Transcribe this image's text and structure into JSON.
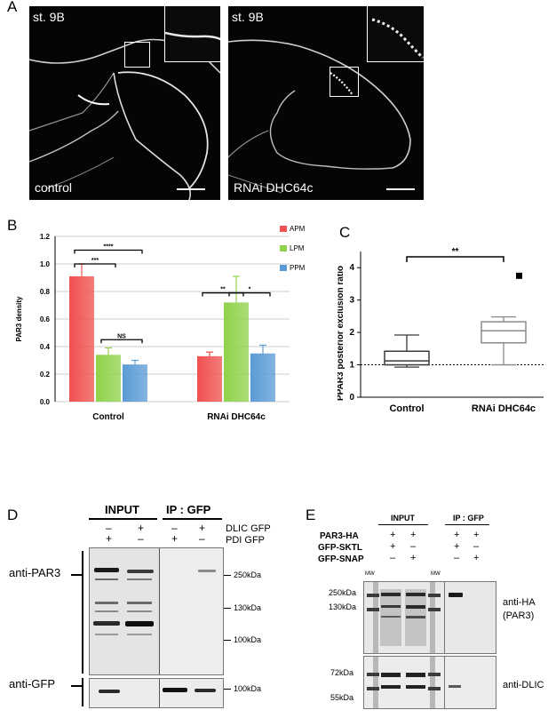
{
  "panel_a": {
    "letter": "A",
    "left_image": {
      "stage": "st. 9B",
      "condition": "control"
    },
    "right_image": {
      "stage": "st. 9B",
      "condition": "RNAi DHC64c"
    }
  },
  "panel_b": {
    "letter": "B"
  },
  "panel_c": {
    "letter": "C"
  },
  "panel_d": {
    "letter": "D",
    "input_header": "INPUT",
    "ip_header": "IP : GFP",
    "row1_label": "DLIC GFP",
    "row2_label": "PDI GFP",
    "row1_signs": [
      "–",
      "+",
      "–",
      "+"
    ],
    "row2_signs": [
      "+",
      "–",
      "+",
      "–"
    ],
    "blot1_label": "anti-PAR3",
    "blot2_label": "anti-GFP",
    "mw_250": "250kDa",
    "mw_130": "130kDa",
    "mw_100a": "100kDa",
    "mw_100b": "100kDa"
  },
  "panel_e": {
    "letter": "E",
    "input_header": "INPUT",
    "ip_header": "IP : GFP",
    "rows": [
      {
        "label": "PAR3-HA",
        "signs": [
          "+",
          "+",
          "+",
          "+"
        ]
      },
      {
        "label": "GFP-SKTL",
        "signs": [
          "+",
          "–",
          "+",
          "–"
        ]
      },
      {
        "label": "GFP-SNAP",
        "signs": [
          "–",
          "+",
          "–",
          "+"
        ]
      }
    ],
    "mw_lane": "MW",
    "top_mw": [
      "250kDa",
      "130kDa"
    ],
    "bottom_mw": [
      "72kDa",
      "55kDa"
    ],
    "top_label_1": "anti-HA",
    "top_label_2": "(PAR3)",
    "bottom_label": "anti-DLIC"
  },
  "chart_data": [
    {
      "type": "bar",
      "ylabel": "PAR3 density",
      "ylim": [
        0,
        1.2
      ],
      "yticks": [
        "0.0",
        "0.2",
        "0.4",
        "0.6",
        "0.8",
        "1.0",
        "1.2"
      ],
      "categories": [
        "Control",
        "RNAi DHC64c"
      ],
      "series": [
        {
          "name": "APM",
          "color": "#f0504e",
          "values": [
            0.91,
            0.33
          ],
          "errors": [
            0.09,
            0.03
          ]
        },
        {
          "name": "LPM",
          "color": "#8fd24a",
          "values": [
            0.34,
            0.72
          ],
          "errors": [
            0.05,
            0.19
          ]
        },
        {
          "name": "PPM",
          "color": "#5b9bd5",
          "values": [
            0.27,
            0.35
          ],
          "errors": [
            0.03,
            0.06
          ]
        }
      ],
      "significance": [
        {
          "label": "***",
          "group": 0,
          "from": 0,
          "to": 1,
          "y": 1.0
        },
        {
          "label": "****",
          "group": 0,
          "from": 0,
          "to": 2,
          "y": 1.1
        },
        {
          "label": "NS",
          "group": 0,
          "from": 1,
          "to": 2,
          "y": 0.45
        },
        {
          "label": "**",
          "group": 1,
          "from": 0,
          "to": 1,
          "y": 0.79
        },
        {
          "label": "*",
          "group": 1,
          "from": 1,
          "to": 2,
          "y": 0.79
        }
      ],
      "grid": true,
      "legend": "top-right"
    },
    {
      "type": "box",
      "ylabel": "PPAR3 posterior exclusion ratio",
      "ylim": [
        0,
        4.5
      ],
      "yticks": [
        "0",
        "1",
        "2",
        "3",
        "4"
      ],
      "categories": [
        "Control",
        "RNAi DHC64c"
      ],
      "boxes": [
        {
          "min": 0.93,
          "q1": 1.0,
          "median": 1.12,
          "q3": 1.42,
          "max": 1.92,
          "outliers": []
        },
        {
          "min": 1.0,
          "q1": 1.68,
          "median": 2.05,
          "q3": 2.33,
          "max": 2.48,
          "outliers": [
            3.75
          ]
        }
      ],
      "reference_line": 1.0,
      "significance": "**"
    }
  ]
}
